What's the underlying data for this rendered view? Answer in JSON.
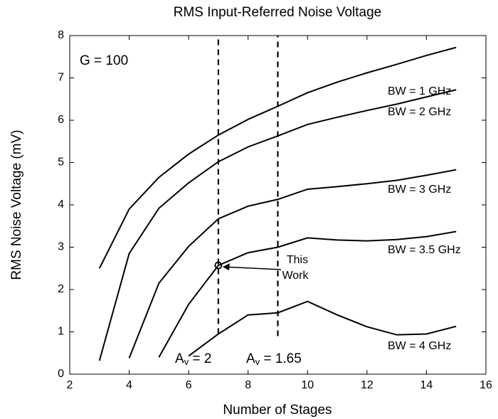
{
  "chart_data": {
    "type": "line",
    "title": "RMS Input-Referred Noise Voltage",
    "xlabel": "Number of Stages",
    "ylabel": "RMS Noise Voltage (mV)",
    "x": [
      3,
      4,
      5,
      6,
      7,
      8,
      9,
      10,
      11,
      12,
      13,
      14,
      15
    ],
    "series": [
      {
        "name": "BW = 1 GHz",
        "color": "#000000",
        "values": [
          2.5,
          3.9,
          4.65,
          5.2,
          5.65,
          6.02,
          6.33,
          6.65,
          6.9,
          7.12,
          7.32,
          7.53,
          7.72
        ]
      },
      {
        "name": "BW = 2 GHz",
        "color": "#000000",
        "values": [
          0.32,
          2.85,
          3.92,
          4.52,
          5.02,
          5.37,
          5.63,
          5.9,
          6.07,
          6.23,
          6.38,
          6.55,
          6.72
        ]
      },
      {
        "name": "BW = 3 GHz",
        "color": "#000000",
        "values": [
          null,
          0.38,
          2.15,
          3.02,
          3.67,
          3.97,
          4.13,
          4.37,
          4.43,
          4.5,
          4.58,
          4.7,
          4.83
        ]
      },
      {
        "name": "BW = 3.5 GHz",
        "color": "#000000",
        "values": [
          null,
          null,
          0.4,
          1.65,
          2.57,
          2.87,
          3.0,
          3.22,
          3.17,
          3.15,
          3.18,
          3.25,
          3.37
        ]
      },
      {
        "name": "BW = 4 GHz",
        "color": "#000000",
        "values": [
          null,
          null,
          null,
          0.43,
          0.95,
          1.4,
          1.45,
          1.72,
          1.4,
          1.12,
          0.93,
          0.95,
          1.13
        ]
      }
    ],
    "xlim": [
      2,
      16
    ],
    "ylim": [
      0,
      8
    ],
    "xticks": [
      2,
      4,
      6,
      8,
      10,
      12,
      14,
      16
    ],
    "yticks": [
      0,
      1,
      2,
      3,
      4,
      5,
      6,
      7,
      8
    ],
    "grid": false,
    "vlines": [
      {
        "x": 7,
        "y": [
          0.95,
          8
        ]
      },
      {
        "x": 9,
        "y": [
          0.9,
          8
        ]
      }
    ],
    "annotations": {
      "gain": "G = 100",
      "av_labels": [
        [
          "A",
          "v",
          " = 2"
        ],
        [
          "A",
          "v",
          " = 1.65"
        ]
      ],
      "point": {
        "text": [
          "This",
          "Work"
        ],
        "x": 7,
        "y": 2.57
      }
    }
  }
}
